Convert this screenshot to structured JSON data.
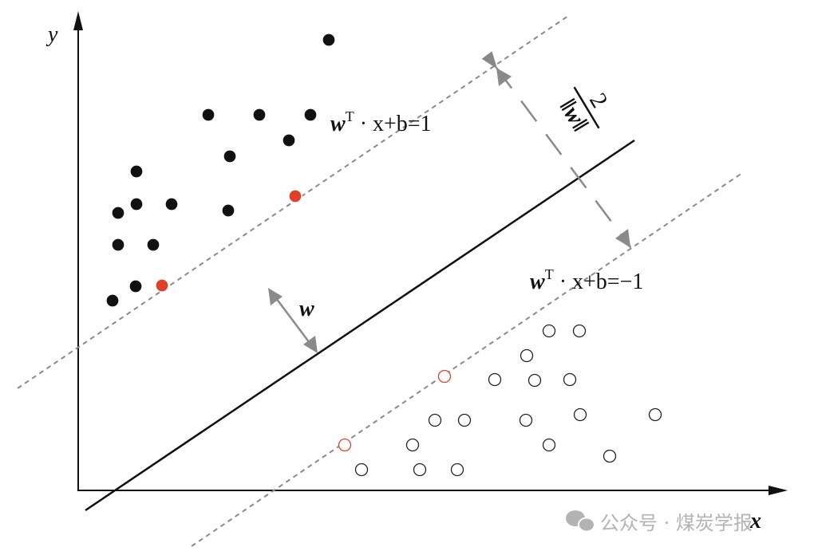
{
  "labels": {
    "y_axis": "y",
    "x_axis": "x",
    "upper_margin_w": "w",
    "upper_margin_sup": "T",
    "upper_margin_rest": " · x+b=1",
    "lower_margin_w": "w",
    "lower_margin_sup": "T",
    "lower_margin_rest": " · x+b=−1",
    "normal_vector": "w",
    "margin_numerator": "2",
    "margin_denominator": "‖w‖"
  },
  "colors": {
    "support_vector": "#e0402a",
    "points": "#111111",
    "dashed": "#8a8a8a"
  },
  "watermark": {
    "text": "公众号 · 煤炭学报",
    "icon": "wechat-icon"
  },
  "classes": {
    "positive": [
      [
        412,
        50
      ],
      [
        261,
        144
      ],
      [
        325,
        144
      ],
      [
        389,
        144
      ],
      [
        362,
        176
      ],
      [
        288,
        196
      ],
      [
        171,
        215
      ],
      [
        148,
        267
      ],
      [
        171,
        256
      ],
      [
        215,
        256
      ],
      [
        286,
        264
      ],
      [
        148,
        307
      ],
      [
        192,
        307
      ],
      [
        170,
        359
      ],
      [
        141,
        377
      ]
    ],
    "positive_support": [
      [
        370,
        246
      ],
      [
        203,
        358
      ]
    ],
    "negative": [
      [
        688,
        415
      ],
      [
        726,
        415
      ],
      [
        660,
        446
      ],
      [
        620,
        476
      ],
      [
        670,
        477
      ],
      [
        714,
        476
      ],
      [
        545,
        527
      ],
      [
        582,
        527
      ],
      [
        659,
        527
      ],
      [
        727,
        520
      ],
      [
        821,
        520
      ],
      [
        517,
        558
      ],
      [
        688,
        558
      ],
      [
        764,
        572
      ],
      [
        453,
        589
      ],
      [
        526,
        589
      ],
      [
        573,
        589
      ]
    ],
    "negative_support": [
      [
        557,
        472
      ],
      [
        432,
        558
      ]
    ]
  }
}
